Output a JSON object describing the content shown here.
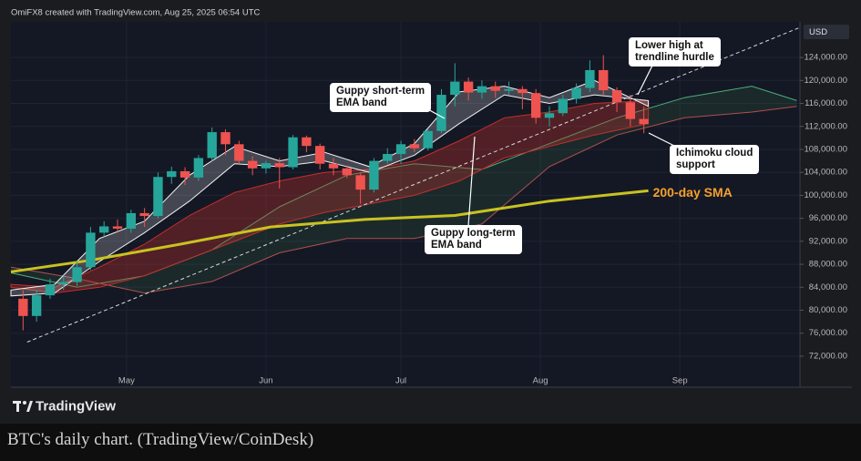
{
  "chart_data": {
    "type": "candlestick",
    "header": "OmiFX8 created with TradingView.com, Aug 25, 2025 06:54 UTC",
    "currency": "USD",
    "up_color": "#26a69a",
    "down_color": "#ef5350",
    "x": [
      98,
      101,
      104,
      107,
      110,
      113,
      116,
      119,
      122,
      125,
      128,
      131,
      134,
      137,
      140,
      143,
      146,
      149,
      152,
      155,
      158,
      161,
      164,
      167,
      170,
      173,
      176,
      179,
      182,
      185,
      188,
      191,
      194,
      197,
      200,
      203,
      206,
      209,
      212,
      215,
      218,
      221,
      224,
      227,
      230,
      233,
      236
    ],
    "open": [
      82000,
      79000,
      82600,
      84500,
      84900,
      87500,
      93500,
      94600,
      94200,
      96900,
      96400,
      103200,
      104200,
      103100,
      106500,
      111000,
      108900,
      106000,
      104700,
      105600,
      104900,
      110100,
      108600,
      105500,
      104700,
      103500,
      101000,
      106000,
      107200,
      108900,
      108200,
      111200,
      117500,
      119800,
      117900,
      119000,
      118200,
      118500,
      117800,
      113500,
      114300,
      116800,
      118700,
      121800,
      118300,
      116200,
      113300
    ],
    "high": [
      83500,
      83500,
      85500,
      86000,
      88500,
      94500,
      95500,
      95800,
      97500,
      97800,
      104000,
      105000,
      104900,
      107000,
      111800,
      111500,
      109500,
      106800,
      106000,
      106500,
      110500,
      110400,
      109000,
      106500,
      105200,
      104000,
      106500,
      108200,
      109500,
      109800,
      111500,
      118500,
      123000,
      120500,
      120000,
      119800,
      119800,
      119000,
      118500,
      115500,
      117500,
      119500,
      123500,
      124400,
      118800,
      117500,
      115500
    ],
    "low": [
      76500,
      78000,
      82000,
      83500,
      84200,
      87000,
      92800,
      93500,
      93500,
      94500,
      96000,
      102000,
      101800,
      102500,
      106000,
      107000,
      105500,
      103500,
      103800,
      101200,
      104500,
      107500,
      104500,
      103500,
      103000,
      98500,
      100500,
      105500,
      105500,
      107500,
      107800,
      110800,
      115500,
      116500,
      116800,
      117000,
      117500,
      115000,
      112500,
      112000,
      113800,
      116000,
      118000,
      117500,
      114500,
      112000,
      110800
    ],
    "close": [
      79000,
      82600,
      84500,
      84900,
      87500,
      93500,
      94600,
      94200,
      96900,
      96400,
      103200,
      104200,
      103100,
      106500,
      111000,
      108900,
      106000,
      104700,
      105600,
      104900,
      110100,
      108600,
      105500,
      104700,
      103500,
      101000,
      106000,
      107200,
      108900,
      108200,
      111200,
      117500,
      119800,
      117900,
      119000,
      118200,
      118500,
      117800,
      113500,
      114300,
      116800,
      118700,
      121800,
      118300,
      116200,
      113300,
      112400
    ],
    "xlim": [
      95.3,
      270.7
    ],
    "xticks": [
      {
        "value": 121,
        "label": "May"
      },
      {
        "value": 152,
        "label": "Jun"
      },
      {
        "value": 182,
        "label": "Jul"
      },
      {
        "value": 213,
        "label": "Aug"
      },
      {
        "value": 244,
        "label": "Sep"
      }
    ],
    "ylim": [
      66600,
      130200
    ],
    "yticks": [
      {
        "value": 72000,
        "label": "72,000.00"
      },
      {
        "value": 76000,
        "label": "76,000.00"
      },
      {
        "value": 80000,
        "label": "80,000.00"
      },
      {
        "value": 84000,
        "label": "84,000.00"
      },
      {
        "value": 88000,
        "label": "88,000.00"
      },
      {
        "value": 92000,
        "label": "92,000.00"
      },
      {
        "value": 96000,
        "label": "96,000.00"
      },
      {
        "value": 100000,
        "label": "100,000.00"
      },
      {
        "value": 104000,
        "label": "104,000.00"
      },
      {
        "value": 108000,
        "label": "108,000.00"
      },
      {
        "value": 112000,
        "label": "112,000.00"
      },
      {
        "value": 116000,
        "label": "116,000.00"
      },
      {
        "value": 120000,
        "label": "120,000.00"
      },
      {
        "value": 124000,
        "label": "124,000.00"
      }
    ],
    "grid": true,
    "sma": {
      "name": "200-day SMA",
      "color": "#c9c221",
      "label_color": "#f5a02c",
      "x": [
        95.3,
        113,
        133,
        153,
        174,
        194,
        215,
        237
      ],
      "values": [
        86700,
        88700,
        91500,
        94500,
        95800,
        96500,
        99000,
        100800
      ]
    },
    "trendline": {
      "color": "#d8d8d8",
      "x": [
        98.9,
        270.7
      ],
      "values": [
        74450,
        129230
      ]
    },
    "ichimoku": {
      "color_a": "#4caf7a",
      "color_b": "#b0504f",
      "fill": "rgba(60,120,80,0.18)",
      "x": [
        95.3,
        110,
        125,
        140,
        155,
        170,
        185,
        200,
        215,
        230,
        245,
        260,
        270
      ],
      "span_a": [
        86500,
        84000,
        86000,
        90500,
        98000,
        103500,
        105500,
        104500,
        109000,
        113500,
        117000,
        119000,
        116500
      ],
      "span_b": [
        87500,
        85500,
        83000,
        85000,
        90000,
        92500,
        92500,
        95000,
        105000,
        110500,
        113500,
        114500,
        115500
      ]
    },
    "guppy": {
      "short_color": "#f2f2f2",
      "long_color": "#c0302c",
      "x": [
        95.3,
        105,
        115,
        125,
        135,
        145,
        155,
        165,
        175,
        185,
        195,
        205,
        215,
        225,
        237
      ],
      "short_upper": [
        83500,
        84500,
        92500,
        95500,
        103500,
        108500,
        106000,
        107500,
        105000,
        109000,
        118000,
        119000,
        117000,
        120000,
        115500
      ],
      "short_lower": [
        82500,
        83000,
        88500,
        93500,
        99000,
        105500,
        105000,
        106000,
        104000,
        107000,
        112500,
        117500,
        116000,
        117500,
        116500
      ],
      "long_upper": [
        84500,
        84000,
        87500,
        91500,
        96500,
        100500,
        102500,
        104000,
        104500,
        106000,
        109500,
        113500,
        114500,
        116000,
        116500
      ],
      "long_lower": [
        84000,
        83000,
        84000,
        86000,
        89000,
        92000,
        95000,
        97000,
        98500,
        100000,
        102500,
        106500,
        108500,
        110500,
        112500
      ]
    },
    "annotations": [
      {
        "lines": [
          "Guppy short-term",
          "EMA band"
        ]
      },
      {
        "lines": [
          "Guppy long-term",
          "EMA band"
        ]
      },
      {
        "lines": [
          "Lower high at",
          "trendline hurdle"
        ]
      },
      {
        "lines": [
          "Ichimoku cloud",
          "support"
        ]
      }
    ],
    "logo": "TradingView"
  },
  "caption": "BTC's daily chart. (TradingView/CoinDesk)"
}
